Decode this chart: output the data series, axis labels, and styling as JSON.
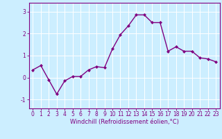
{
  "x": [
    0,
    1,
    2,
    3,
    4,
    5,
    6,
    7,
    8,
    9,
    10,
    11,
    12,
    13,
    14,
    15,
    16,
    17,
    18,
    19,
    20,
    21,
    22,
    23
  ],
  "y": [
    0.35,
    0.55,
    -0.1,
    -0.75,
    -0.15,
    0.05,
    0.05,
    0.35,
    0.5,
    0.45,
    1.3,
    1.95,
    2.35,
    2.85,
    2.85,
    2.5,
    2.5,
    1.2,
    1.4,
    1.2,
    1.2,
    0.9,
    0.85,
    0.72
  ],
  "line_color": "#800080",
  "marker": "D",
  "marker_size": 2.0,
  "bg_color": "#cceeff",
  "grid_color": "#ffffff",
  "xlabel": "Windchill (Refroidissement éolien,°C)",
  "xlim": [
    -0.5,
    23.5
  ],
  "ylim": [
    -1.4,
    3.4
  ],
  "yticks": [
    -1,
    0,
    1,
    2,
    3
  ],
  "xticks": [
    0,
    1,
    2,
    3,
    4,
    5,
    6,
    7,
    8,
    9,
    10,
    11,
    12,
    13,
    14,
    15,
    16,
    17,
    18,
    19,
    20,
    21,
    22,
    23
  ],
  "xlabel_color": "#800080",
  "tick_color": "#800080",
  "spine_color": "#800080",
  "linewidth": 1.0,
  "tick_fontsize": 5.5,
  "xlabel_fontsize": 6.0
}
